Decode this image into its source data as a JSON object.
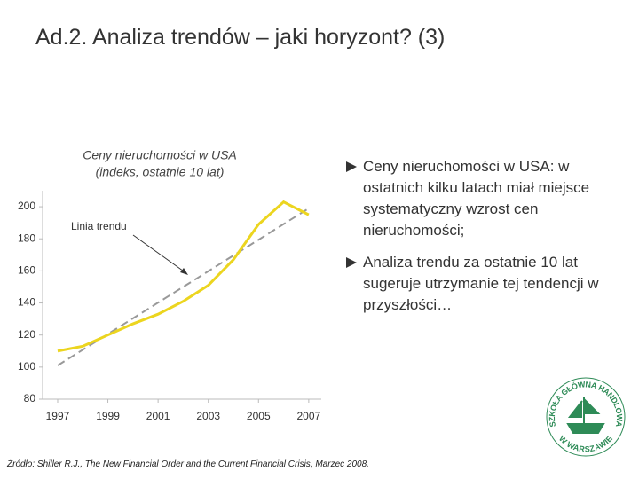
{
  "slide_title": "Ad.2. Analiza trendów – jaki horyzont? (3)",
  "chart_data": {
    "type": "line",
    "title": [
      "Ceny nieruchomości w USA",
      "(indeks, ostatnie 10 lat)"
    ],
    "annotation": "Linia trendu",
    "series": [
      {
        "name": "Ceny nieruchomości",
        "color": "#ecd51f",
        "dash": false,
        "x": [
          1997,
          1998,
          1999,
          2000,
          2001,
          2002,
          2003,
          2004,
          2005,
          2006,
          2007
        ],
        "values": [
          110,
          113,
          120,
          127,
          133,
          141,
          151,
          167,
          189,
          203,
          195
        ]
      },
      {
        "name": "Linia trendu",
        "color": "#999999",
        "dash": true,
        "x": [
          1997,
          2007
        ],
        "values": [
          101,
          199
        ]
      }
    ],
    "xlim": [
      1996.4,
      2007.5
    ],
    "xticks": [
      1997,
      1999,
      2001,
      2003,
      2005,
      2007
    ],
    "ylim": [
      80,
      210
    ],
    "yticks": [
      80,
      100,
      120,
      140,
      160,
      180,
      200
    ],
    "grid": false
  },
  "bullets": [
    "Ceny nieruchomości w USA: w ostatnich kilku latach miał miejsce systematyczny wzrost cen nieruchomości;",
    "Analiza trendu za ostatnie 10 lat sugeruje utrzymanie tej tendencji w przyszłości…"
  ],
  "source": "Źródło: Shiller R.J., The New Financial Order and the Current Financial Crisis, Marzec 2008.",
  "logo": {
    "top": "SZKOŁA GŁÓWNA HANDLOWA",
    "bottom": "W WARSZAWIE"
  }
}
